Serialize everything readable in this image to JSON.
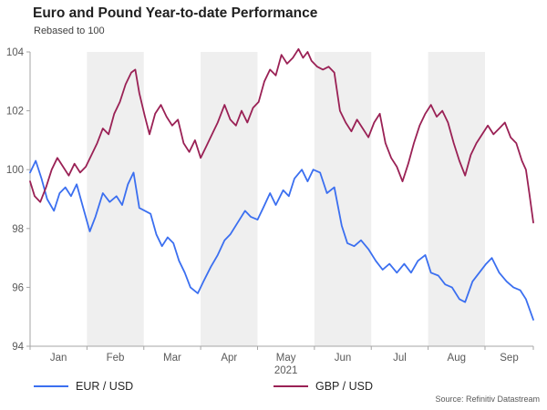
{
  "header": {
    "title": "Euro and Pound Year-to-date Performance",
    "subtitle": "Rebased to 100"
  },
  "footer": {
    "source": "Source: Refinitiv Datastream"
  },
  "chart_data": {
    "type": "line",
    "title": "Euro and Pound Year-to-date Performance",
    "subtitle": "Rebased to 100",
    "xlabel": "",
    "ylabel": "",
    "x_unit": "months since 1 Jan 2021 (fractional)",
    "xlim": [
      0,
      8.85
    ],
    "ylim": [
      94,
      104
    ],
    "y_ticks": [
      94,
      96,
      98,
      100,
      102,
      104
    ],
    "x_month_labels": [
      "Jan",
      "Feb",
      "Mar",
      "Apr",
      "May",
      "Jun",
      "Jul",
      "Aug",
      "Sep"
    ],
    "year_label": "2021",
    "grid": false,
    "legend_position": "bottom",
    "shaded_months": [
      1,
      3,
      5,
      7
    ],
    "band_color": "#efefef",
    "axis_color": "#a6a6a6",
    "tick_text_color": "#595959",
    "series": [
      {
        "name": "EUR / USD",
        "color": "#3b6ff0",
        "points": [
          [
            0.0,
            99.9
          ],
          [
            0.1,
            100.3
          ],
          [
            0.2,
            99.7
          ],
          [
            0.3,
            99.0
          ],
          [
            0.42,
            98.6
          ],
          [
            0.52,
            99.2
          ],
          [
            0.62,
            99.4
          ],
          [
            0.72,
            99.1
          ],
          [
            0.82,
            99.5
          ],
          [
            0.92,
            98.8
          ],
          [
            1.05,
            97.9
          ],
          [
            1.15,
            98.4
          ],
          [
            1.28,
            99.2
          ],
          [
            1.4,
            98.9
          ],
          [
            1.52,
            99.1
          ],
          [
            1.62,
            98.8
          ],
          [
            1.72,
            99.5
          ],
          [
            1.82,
            99.9
          ],
          [
            1.92,
            98.7
          ],
          [
            2.02,
            98.6
          ],
          [
            2.12,
            98.5
          ],
          [
            2.22,
            97.8
          ],
          [
            2.32,
            97.4
          ],
          [
            2.42,
            97.7
          ],
          [
            2.52,
            97.5
          ],
          [
            2.62,
            96.9
          ],
          [
            2.72,
            96.5
          ],
          [
            2.82,
            96.0
          ],
          [
            2.95,
            95.8
          ],
          [
            3.05,
            96.2
          ],
          [
            3.18,
            96.7
          ],
          [
            3.3,
            97.1
          ],
          [
            3.42,
            97.6
          ],
          [
            3.52,
            97.8
          ],
          [
            3.65,
            98.2
          ],
          [
            3.78,
            98.6
          ],
          [
            3.88,
            98.4
          ],
          [
            4.0,
            98.3
          ],
          [
            4.1,
            98.7
          ],
          [
            4.22,
            99.2
          ],
          [
            4.32,
            98.8
          ],
          [
            4.45,
            99.3
          ],
          [
            4.55,
            99.1
          ],
          [
            4.65,
            99.7
          ],
          [
            4.78,
            100.0
          ],
          [
            4.88,
            99.6
          ],
          [
            4.98,
            100.0
          ],
          [
            5.1,
            99.9
          ],
          [
            5.22,
            99.2
          ],
          [
            5.35,
            99.4
          ],
          [
            5.48,
            98.1
          ],
          [
            5.58,
            97.5
          ],
          [
            5.7,
            97.4
          ],
          [
            5.82,
            97.6
          ],
          [
            5.95,
            97.3
          ],
          [
            6.08,
            96.9
          ],
          [
            6.2,
            96.6
          ],
          [
            6.32,
            96.8
          ],
          [
            6.45,
            96.5
          ],
          [
            6.58,
            96.8
          ],
          [
            6.7,
            96.5
          ],
          [
            6.82,
            96.9
          ],
          [
            6.95,
            97.1
          ],
          [
            7.05,
            96.5
          ],
          [
            7.18,
            96.4
          ],
          [
            7.3,
            96.1
          ],
          [
            7.42,
            96.0
          ],
          [
            7.55,
            95.6
          ],
          [
            7.65,
            95.5
          ],
          [
            7.78,
            96.2
          ],
          [
            7.9,
            96.5
          ],
          [
            8.02,
            96.8
          ],
          [
            8.12,
            97.0
          ],
          [
            8.25,
            96.5
          ],
          [
            8.38,
            96.2
          ],
          [
            8.5,
            96.0
          ],
          [
            8.62,
            95.9
          ],
          [
            8.72,
            95.6
          ],
          [
            8.85,
            94.9
          ]
        ]
      },
      {
        "name": "GBP / USD",
        "color": "#9a2155",
        "points": [
          [
            0.0,
            99.6
          ],
          [
            0.08,
            99.1
          ],
          [
            0.18,
            98.9
          ],
          [
            0.28,
            99.4
          ],
          [
            0.38,
            100.0
          ],
          [
            0.48,
            100.4
          ],
          [
            0.58,
            100.1
          ],
          [
            0.68,
            99.8
          ],
          [
            0.78,
            100.2
          ],
          [
            0.88,
            99.9
          ],
          [
            0.98,
            100.1
          ],
          [
            1.08,
            100.5
          ],
          [
            1.18,
            100.9
          ],
          [
            1.28,
            101.4
          ],
          [
            1.38,
            101.2
          ],
          [
            1.48,
            101.9
          ],
          [
            1.58,
            102.3
          ],
          [
            1.68,
            102.9
          ],
          [
            1.78,
            103.3
          ],
          [
            1.85,
            103.4
          ],
          [
            1.92,
            102.6
          ],
          [
            2.02,
            101.8
          ],
          [
            2.1,
            101.2
          ],
          [
            2.2,
            101.9
          ],
          [
            2.3,
            102.2
          ],
          [
            2.4,
            101.8
          ],
          [
            2.5,
            101.5
          ],
          [
            2.6,
            101.7
          ],
          [
            2.7,
            100.9
          ],
          [
            2.8,
            100.6
          ],
          [
            2.9,
            101.0
          ],
          [
            3.0,
            100.4
          ],
          [
            3.1,
            100.8
          ],
          [
            3.2,
            101.2
          ],
          [
            3.3,
            101.6
          ],
          [
            3.42,
            102.2
          ],
          [
            3.52,
            101.7
          ],
          [
            3.62,
            101.5
          ],
          [
            3.72,
            102.0
          ],
          [
            3.82,
            101.6
          ],
          [
            3.92,
            102.1
          ],
          [
            4.02,
            102.3
          ],
          [
            4.12,
            103.0
          ],
          [
            4.22,
            103.4
          ],
          [
            4.32,
            103.2
          ],
          [
            4.42,
            103.9
          ],
          [
            4.52,
            103.6
          ],
          [
            4.62,
            103.8
          ],
          [
            4.72,
            104.1
          ],
          [
            4.8,
            103.8
          ],
          [
            4.88,
            104.0
          ],
          [
            4.95,
            103.7
          ],
          [
            5.05,
            103.5
          ],
          [
            5.15,
            103.4
          ],
          [
            5.25,
            103.5
          ],
          [
            5.35,
            103.3
          ],
          [
            5.45,
            102.0
          ],
          [
            5.55,
            101.6
          ],
          [
            5.65,
            101.3
          ],
          [
            5.75,
            101.7
          ],
          [
            5.85,
            101.4
          ],
          [
            5.95,
            101.1
          ],
          [
            6.05,
            101.6
          ],
          [
            6.15,
            101.9
          ],
          [
            6.25,
            100.9
          ],
          [
            6.35,
            100.4
          ],
          [
            6.45,
            100.1
          ],
          [
            6.55,
            99.6
          ],
          [
            6.65,
            100.2
          ],
          [
            6.75,
            100.9
          ],
          [
            6.85,
            101.5
          ],
          [
            6.95,
            101.9
          ],
          [
            7.05,
            102.2
          ],
          [
            7.15,
            101.8
          ],
          [
            7.25,
            102.0
          ],
          [
            7.35,
            101.6
          ],
          [
            7.45,
            100.9
          ],
          [
            7.55,
            100.3
          ],
          [
            7.65,
            99.8
          ],
          [
            7.75,
            100.5
          ],
          [
            7.85,
            100.9
          ],
          [
            7.95,
            101.2
          ],
          [
            8.05,
            101.5
          ],
          [
            8.15,
            101.2
          ],
          [
            8.25,
            101.4
          ],
          [
            8.35,
            101.6
          ],
          [
            8.45,
            101.1
          ],
          [
            8.55,
            100.9
          ],
          [
            8.65,
            100.3
          ],
          [
            8.72,
            100.0
          ],
          [
            8.78,
            99.2
          ],
          [
            8.85,
            98.2
          ]
        ]
      }
    ]
  }
}
